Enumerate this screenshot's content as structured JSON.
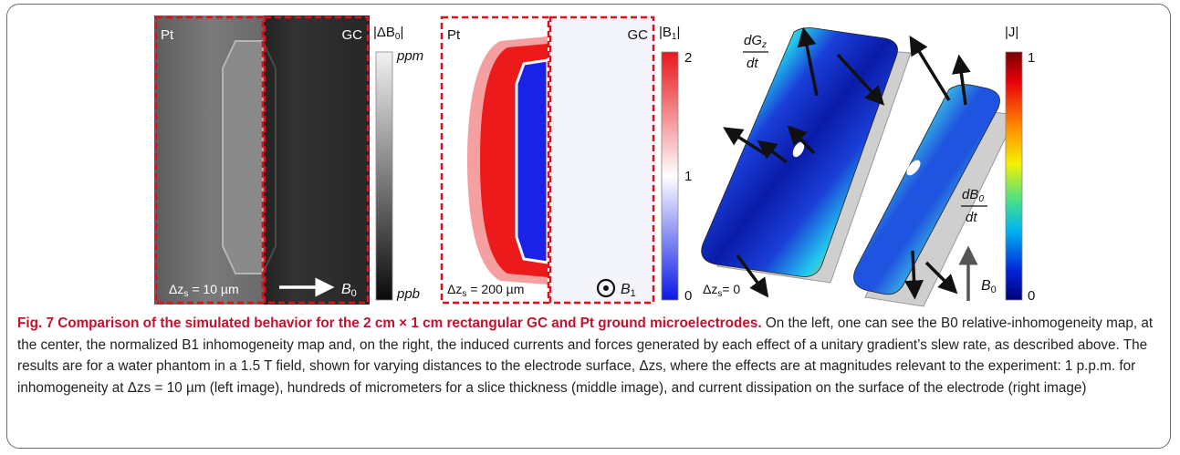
{
  "figure": {
    "panel_b0": {
      "label_left": "Pt",
      "label_right": "GC",
      "distance_sym": "Δz",
      "distance_sub": "s",
      "distance_val": "= 10 µm",
      "field_sym": "B",
      "field_sub": "0",
      "colorbar_title": "|ΔB",
      "colorbar_title_sub": "0",
      "colorbar_title_end": "|",
      "colorbar_top": "ppm",
      "colorbar_bottom": "ppb"
    },
    "panel_b1": {
      "label_left": "Pt",
      "label_right": "GC",
      "distance_sym": "Δz",
      "distance_sub": "s",
      "distance_val": "= 200 µm",
      "field_sym": "B",
      "field_sub": "1",
      "colorbar_title": "|B",
      "colorbar_title_sub": "1",
      "colorbar_title_end": "|",
      "ticks": [
        "2",
        "1",
        "0"
      ]
    },
    "panel_j": {
      "grad_label_num": "dG",
      "grad_label_sub": "z",
      "grad_label_den": "dt",
      "b0_label_num": "dB",
      "b0_label_sub": "0",
      "b0_label_den": "dt",
      "distance_sym": "Δz",
      "distance_sub": "s",
      "distance_val": "= 0",
      "field_sym": "B",
      "field_sub": "0",
      "colorbar_title": "|J|",
      "ticks": [
        "1",
        "0"
      ]
    }
  },
  "caption": {
    "lead": "Fig. 7 Comparison of the simulated behavior for the 2 cm × 1 cm rectangular GC and Pt ground microelectrodes.",
    "body": " On the left, one can see the B0 relative-inhomogeneity map, at the center, the normalized B1 inhomogeneity map and, on the right, the induced currents and forces generated by each effect of a unitary gradient’s slew rate, as described above. The results are for a water phantom in a 1.5 T field, shown for varying distances to the electrode surface, Δzs, where the effects are at magnitudes relevant to the experiment: 1 p.p.m. for inhomogeneity at Δzs = 10 µm (left image), hundreds of micrometers for a slice thickness (middle image), and current dissipation on the surface of the electrode (right image)"
  },
  "colors": {
    "frame": "#6d6d6d",
    "caption_lead": "#c8102e",
    "dashed_box": "#e0101a"
  }
}
